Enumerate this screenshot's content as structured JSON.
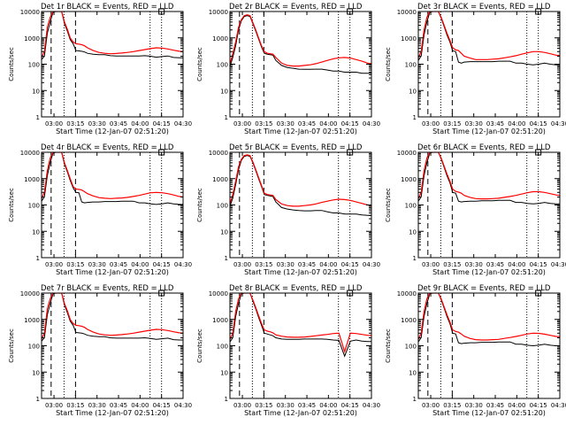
{
  "figure": {
    "panel_titles": [
      "Det 1r BLACK = Events, RED = LLD",
      "Det 2r BLACK = Events, RED = LLD",
      "Det 3r BLACK = Events, RED = LLD",
      "Det 4r BLACK = Events, RED = LLD",
      "Det 5r BLACK = Events, RED = LLD",
      "Det 6r BLACK = Events, RED = LLD",
      "Det 7r BLACK = Events, RED = LLD",
      "Det 8r BLACK = Events, RED = LLD",
      "Det 9r BLACK = Events, RED = LLD"
    ],
    "xlabel": "Start Time (12-Jan-07 02:51:20)",
    "ylabel": "Counts/sec",
    "colors": {
      "events": "#000000",
      "lld": "#ff0000",
      "axes": "#000000"
    }
  },
  "chart_data": {
    "type": "line",
    "yscale": "log",
    "xlim": [
      "02:51:20",
      "04:30:00"
    ],
    "ylim": [
      1,
      10000
    ],
    "xticks": [
      "03:00",
      "03:15",
      "03:30",
      "03:45",
      "04:00",
      "04:15",
      "04:30"
    ],
    "x_minutes_after_start": [
      0,
      2,
      4,
      6,
      8,
      10,
      12,
      14,
      16,
      18,
      20,
      22,
      24,
      26,
      28,
      30,
      32,
      36,
      40,
      44,
      48,
      52,
      56,
      60,
      64,
      68,
      72,
      76,
      80,
      84,
      88,
      92,
      96,
      98.67
    ],
    "yticks": [
      1,
      10,
      100,
      1000,
      10000
    ],
    "ytick_labels": [
      "1",
      "10",
      "100",
      "1000",
      "10000"
    ],
    "dashed_vlines": [
      "02:58:00",
      "03:15:00"
    ],
    "dotted_vlines": [
      "03:07:00",
      "04:07:00",
      "04:15:00"
    ],
    "panels": [
      {
        "name": "Det 1r",
        "series": [
          {
            "name": "BLACK = Events",
            "values": [
              150,
              200,
              1500,
              4000,
              9500,
              10000,
              10000,
              10000,
              3500,
              1800,
              850,
              600,
              330,
              320,
              310,
              290,
              260,
              240,
              230,
              230,
              210,
              205,
              205,
              205,
              205,
              205,
              210,
              200,
              185,
              195,
              205,
              180,
              175,
              175
            ]
          },
          {
            "name": "RED = LLD",
            "values": [
              180,
              300,
              2500,
              6000,
              10000,
              10000,
              10000,
              10000,
              4000,
              2100,
              1000,
              700,
              600,
              580,
              550,
              500,
              420,
              330,
              280,
              260,
              250,
              255,
              265,
              280,
              300,
              330,
              360,
              390,
              420,
              410,
              380,
              340,
              310,
              300
            ]
          }
        ]
      },
      {
        "name": "Det 2r",
        "series": [
          {
            "name": "BLACK = Events",
            "values": [
              80,
              180,
              500,
              2000,
              4500,
              6500,
              7000,
              6500,
              3500,
              1800,
              900,
              450,
              260,
              240,
              230,
              220,
              140,
              90,
              75,
              70,
              65,
              64,
              64,
              65,
              65,
              60,
              55,
              55,
              50,
              50,
              50,
              45,
              45,
              45
            ]
          },
          {
            "name": "RED = LLD",
            "values": [
              100,
              250,
              700,
              2500,
              5000,
              7000,
              7500,
              7000,
              3800,
              2000,
              1000,
              500,
              300,
              260,
              250,
              240,
              180,
              110,
              90,
              85,
              85,
              90,
              95,
              105,
              120,
              140,
              160,
              175,
              180,
              170,
              150,
              130,
              110,
              105
            ]
          }
        ]
      },
      {
        "name": "Det 3r",
        "series": [
          {
            "name": "BLACK = Events",
            "values": [
              140,
              200,
              1300,
              4000,
              9500,
              10000,
              10000,
              10000,
              5500,
              2700,
              1300,
              700,
              320,
              300,
              120,
              110,
              120,
              125,
              125,
              125,
              125,
              125,
              130,
              130,
              130,
              110,
              110,
              100,
              95,
              100,
              110,
              100,
              95,
              95
            ]
          },
          {
            "name": "RED = LLD",
            "values": [
              170,
              300,
              2000,
              6000,
              10000,
              10000,
              10000,
              10000,
              6000,
              3000,
              1500,
              800,
              420,
              350,
              330,
              260,
              200,
              170,
              150,
              150,
              150,
              155,
              160,
              175,
              190,
              210,
              240,
              270,
              300,
              300,
              280,
              250,
              220,
              215
            ]
          }
        ]
      },
      {
        "name": "Det 4r",
        "series": [
          {
            "name": "BLACK = Events",
            "values": [
              140,
              200,
              1300,
              4000,
              9500,
              10000,
              10000,
              10000,
              3500,
              1800,
              850,
              450,
              300,
              290,
              130,
              120,
              125,
              130,
              130,
              135,
              135,
              135,
              140,
              140,
              140,
              120,
              120,
              110,
              105,
              110,
              120,
              110,
              105,
              105
            ]
          },
          {
            "name": "RED = LLD",
            "values": [
              170,
              300,
              2000,
              6000,
              10000,
              10000,
              10000,
              10000,
              4000,
              2000,
              1000,
              500,
              400,
              390,
              370,
              320,
              270,
              220,
              190,
              180,
              175,
              180,
              185,
              195,
              210,
              230,
              260,
              290,
              300,
              290,
              270,
              240,
              210,
              200
            ]
          }
        ]
      },
      {
        "name": "Det 5r",
        "series": [
          {
            "name": "BLACK = Events",
            "values": [
              90,
              180,
              600,
              2200,
              5000,
              7000,
              7500,
              7000,
              4000,
              2000,
              1000,
              500,
              250,
              230,
              220,
              210,
              130,
              80,
              70,
              65,
              62,
              60,
              60,
              62,
              62,
              55,
              50,
              50,
              45,
              45,
              45,
              42,
              40,
              40
            ]
          },
          {
            "name": "RED = LLD",
            "values": [
              110,
              250,
              800,
              2800,
              5500,
              7500,
              8000,
              7500,
              4300,
              2200,
              1100,
              550,
              280,
              250,
              240,
              230,
              160,
              110,
              95,
              90,
              90,
              95,
              100,
              110,
              125,
              140,
              155,
              165,
              160,
              150,
              130,
              115,
              100,
              95
            ]
          }
        ]
      },
      {
        "name": "Det 6r",
        "series": [
          {
            "name": "BLACK = Events",
            "values": [
              140,
              200,
              1300,
              4000,
              9500,
              10000,
              10000,
              10000,
              5500,
              2700,
              1300,
              700,
              300,
              280,
              140,
              130,
              135,
              140,
              140,
              145,
              145,
              145,
              150,
              150,
              150,
              125,
              125,
              115,
              110,
              115,
              125,
              115,
              110,
              110
            ]
          },
          {
            "name": "RED = LLD",
            "values": [
              170,
              300,
              2000,
              6000,
              10000,
              10000,
              10000,
              10000,
              6000,
              3000,
              1500,
              800,
              400,
              330,
              310,
              280,
              230,
              195,
              175,
              170,
              170,
              175,
              180,
              195,
              210,
              230,
              260,
              290,
              320,
              320,
              300,
              270,
              240,
              230
            ]
          }
        ]
      },
      {
        "name": "Det 7r",
        "series": [
          {
            "name": "BLACK = Events",
            "values": [
              150,
              200,
              1500,
              4000,
              9500,
              10000,
              10000,
              10000,
              3500,
              1800,
              850,
              600,
              320,
              310,
              300,
              280,
              250,
              230,
              220,
              220,
              200,
              195,
              195,
              195,
              195,
              195,
              200,
              190,
              175,
              185,
              195,
              170,
              165,
              165
            ]
          },
          {
            "name": "RED = LLD",
            "values": [
              180,
              300,
              2500,
              6000,
              10000,
              10000,
              10000,
              10000,
              4000,
              2100,
              1000,
              700,
              600,
              580,
              550,
              500,
              420,
              330,
              280,
              260,
              250,
              255,
              265,
              280,
              300,
              330,
              360,
              390,
              420,
              410,
              380,
              340,
              310,
              300
            ]
          }
        ]
      },
      {
        "name": "Det 8r",
        "series": [
          {
            "name": "BLACK = Events",
            "values": [
              140,
              200,
              1300,
              4000,
              9500,
              10000,
              10000,
              10000,
              5000,
              2500,
              1200,
              600,
              300,
              280,
              260,
              240,
              200,
              180,
              175,
              175,
              175,
              180,
              180,
              180,
              180,
              175,
              165,
              160,
              40,
              150,
              165,
              150,
              145,
              145
            ]
          },
          {
            "name": "RED = LLD",
            "values": [
              170,
              300,
              2000,
              6000,
              10000,
              10000,
              10000,
              10000,
              5500,
              2800,
              1400,
              700,
              400,
              360,
              340,
              310,
              260,
              230,
              215,
              210,
              210,
              215,
              225,
              240,
              255,
              270,
              290,
              300,
              60,
              300,
              290,
              270,
              250,
              245
            ]
          }
        ]
      },
      {
        "name": "Det 9r",
        "series": [
          {
            "name": "BLACK = Events",
            "values": [
              140,
              200,
              1300,
              4000,
              9500,
              10000,
              10000,
              10000,
              5500,
              2700,
              1300,
              700,
              300,
              280,
              130,
              120,
              125,
              130,
              130,
              135,
              135,
              135,
              140,
              140,
              140,
              115,
              115,
              105,
              100,
              105,
              115,
              105,
              100,
              100
            ]
          },
          {
            "name": "RED = LLD",
            "values": [
              170,
              300,
              2000,
              6000,
              10000,
              10000,
              10000,
              10000,
              6000,
              3000,
              1500,
              800,
              400,
              350,
              330,
              280,
              230,
              190,
              170,
              165,
              165,
              170,
              175,
              190,
              205,
              225,
              250,
              280,
              300,
              295,
              275,
              250,
              225,
              220
            ]
          }
        ]
      }
    ]
  }
}
